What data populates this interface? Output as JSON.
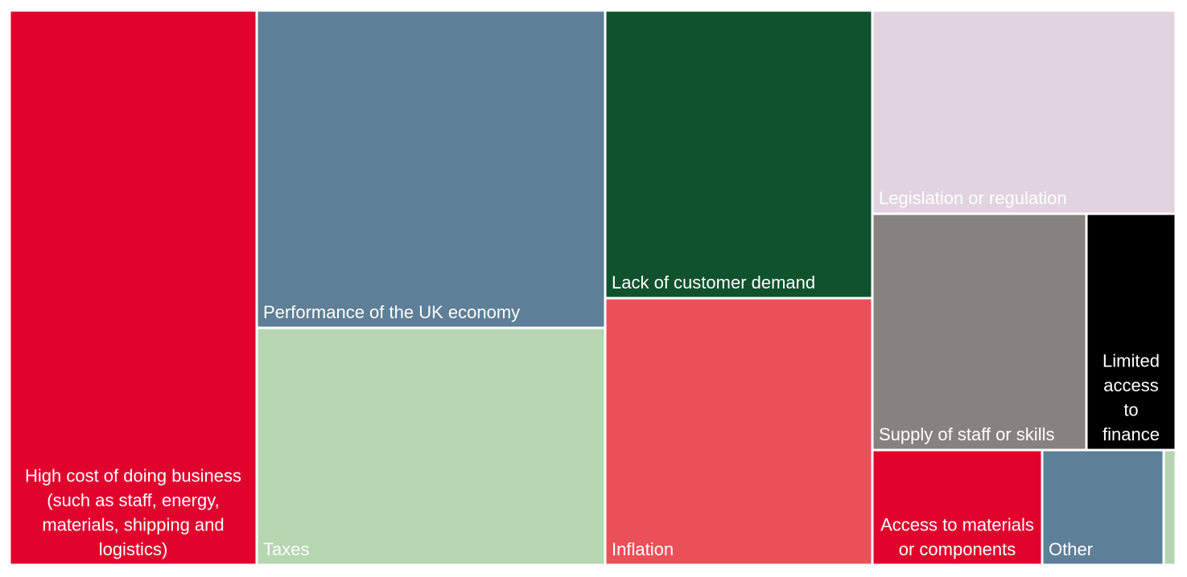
{
  "chart_data": {
    "type": "treemap",
    "title": "",
    "items": [
      {
        "label": "High cost of doing business (such as staff, energy, materials, shipping and logistics)",
        "label_lines": [
          "High cost of doing business",
          "(such as staff, energy,",
          "materials, shipping and",
          "logistics)"
        ],
        "value": 20.5,
        "color": "#E2032D",
        "text_color": "#FFFFFF"
      },
      {
        "label": "Performance of the UK economy",
        "label_lines": [
          "Performance of the UK economy"
        ],
        "value": 16.4,
        "color": "#5D7F97",
        "text_color": "#FFFFFF"
      },
      {
        "label": "Taxes",
        "label_lines": [
          "Taxes"
        ],
        "value": 12.3,
        "color": "#B5D6B0",
        "text_color": "#FFFFFF"
      },
      {
        "label": "Lack of customer demand",
        "label_lines": [
          "Lack of customer demand"
        ],
        "value": 11.5,
        "color": "#10522E",
        "text_color": "#FFFFFF"
      },
      {
        "label": "Inflation",
        "label_lines": [
          "Inflation"
        ],
        "value": 10.7,
        "color": "#EB5058",
        "text_color": "#FFFFFF"
      },
      {
        "label": "Legislation or regulation",
        "label_lines": [
          "Legislation or regulation"
        ],
        "value": 8.6,
        "color": "#E2D3E0",
        "text_color": "#FFFFFF"
      },
      {
        "label": "Supply of staff or skills",
        "label_lines": [
          "Supply of staff or skills"
        ],
        "value": 7.5,
        "color": "#868280",
        "text_color": "#FFFFFF"
      },
      {
        "label": "Limited access to finance",
        "label_lines": [
          "Limited",
          "access",
          "to",
          "finance"
        ],
        "value": 2.8,
        "color": "#000000",
        "text_color": "#FFFFFF"
      },
      {
        "label": "Access to materials or components",
        "label_lines": [
          "Access to materials",
          "or components"
        ],
        "value": 4.2,
        "color": "#E2032D",
        "text_color": "#FFFFFF"
      },
      {
        "label": "Other",
        "label_lines": [
          "Other"
        ],
        "value": 3.0,
        "color": "#5D7F97",
        "text_color": "#FFFFFF"
      },
      {
        "label": "",
        "label_lines": [],
        "value": 0.25,
        "color": "#B5D6B0",
        "text_color": "#FFFFFF"
      }
    ]
  }
}
